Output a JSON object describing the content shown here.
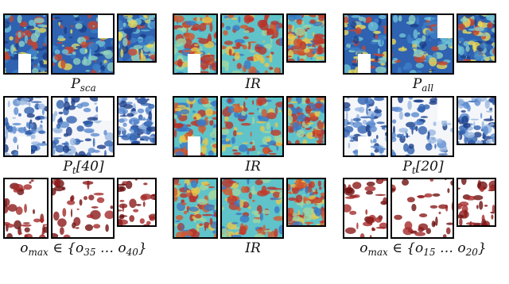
{
  "captions": [
    [
      {
        "text": "P"
      },
      {
        "sub": "sca"
      }
    ],
    [
      {
        "text": "IR"
      }
    ],
    [
      {
        "text": "P"
      },
      {
        "sub": "all"
      }
    ],
    [
      {
        "text": "P"
      },
      {
        "sub": "t"
      },
      {
        "text": "[40]"
      }
    ],
    [
      {
        "text": "IR"
      }
    ],
    [
      {
        "text": "P"
      },
      {
        "sub": "t"
      },
      {
        "text": "[20]"
      }
    ],
    [
      {
        "text": "o"
      },
      {
        "sub": "max"
      },
      {
        "text": " ∈ {o"
      },
      {
        "sub": "35"
      },
      {
        "text": " … o"
      },
      {
        "sub": "40"
      },
      {
        "text": "}"
      }
    ],
    [
      {
        "text": "IR"
      }
    ],
    [
      {
        "text": "o"
      },
      {
        "sub": "max"
      },
      {
        "text": " ∈ {o"
      },
      {
        "sub": "15"
      },
      {
        "text": " … o"
      },
      {
        "sub": "20"
      },
      {
        "text": "}"
      }
    ]
  ]
}
